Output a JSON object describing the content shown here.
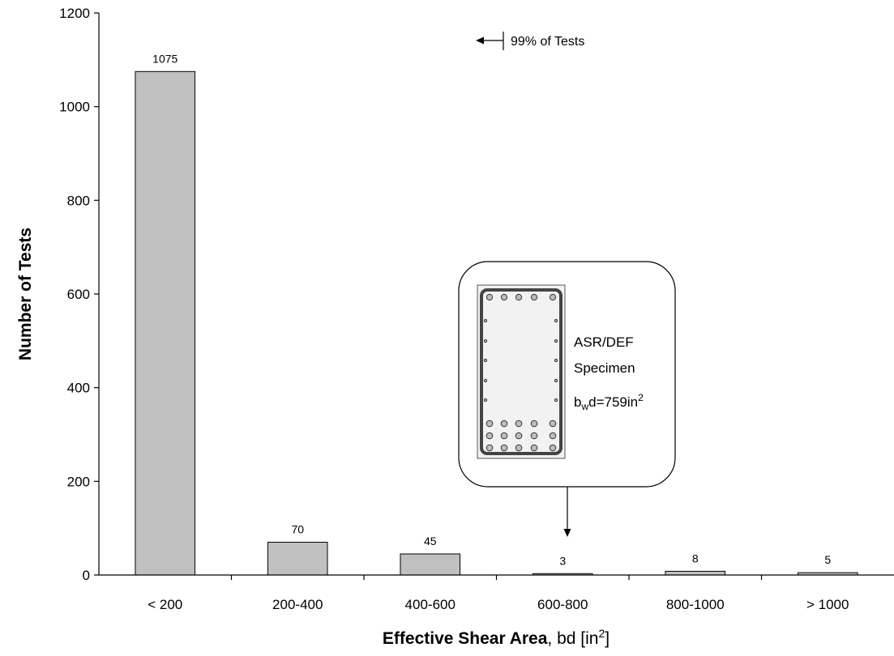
{
  "chart_data": {
    "type": "bar",
    "categories": [
      "< 200",
      "200-400",
      "400-600",
      "600-800",
      "800-1000",
      "> 1000"
    ],
    "values": [
      1075,
      70,
      45,
      3,
      8,
      5
    ],
    "data_labels": [
      "1075",
      "70",
      "45",
      "3",
      "8",
      "5"
    ],
    "xlabel_bold": "Effective Shear Area",
    "xlabel_rest": ", bd [in",
    "xlabel_sup": "2",
    "xlabel_end": "]",
    "ylabel": "Number of Tests",
    "ylim": [
      0,
      1200
    ],
    "yticks": [
      0,
      200,
      400,
      600,
      800,
      1000,
      1200
    ],
    "ytick_labels": [
      "0",
      "200",
      "400",
      "600",
      "800",
      "1000",
      "1200"
    ],
    "grid": false,
    "bar_color": "#c0c0c0",
    "annotations": {
      "range_note": "99% of Tests",
      "specimen_line1": "ASR/DEF",
      "specimen_line2": "Specimen",
      "specimen_b": "b",
      "specimen_w": "w",
      "specimen_eq": "d=759in",
      "specimen_sup": "2",
      "specimen_category": "600-800"
    }
  }
}
